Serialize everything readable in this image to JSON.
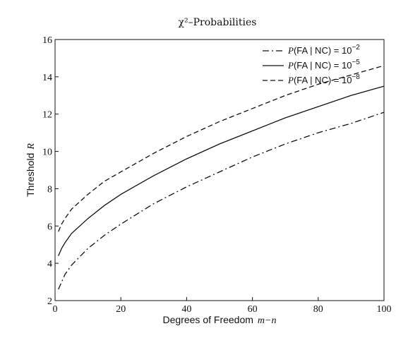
{
  "chart_data": {
    "type": "line",
    "title": "χ²–Probabilities",
    "xlabel": "Degrees of Freedom",
    "xlabel_math": "m−n",
    "ylabel": "Threshold",
    "ylabel_math": "R",
    "xlim": [
      0,
      100
    ],
    "ylim": [
      2,
      16
    ],
    "xticks": [
      0,
      20,
      40,
      60,
      80,
      100
    ],
    "yticks": [
      2,
      4,
      6,
      8,
      10,
      12,
      14,
      16
    ],
    "grid": false,
    "legend_position": "top-right",
    "series": [
      {
        "legend_prefix": "P",
        "legend_body": "(FA | NC) = 10",
        "legend_exp": "−2",
        "style": "dashdot",
        "x": [
          1,
          2,
          3,
          5,
          10,
          15,
          20,
          30,
          40,
          50,
          60,
          70,
          80,
          90,
          100
        ],
        "y": [
          2.6,
          3.0,
          3.4,
          3.9,
          4.8,
          5.5,
          6.1,
          7.2,
          8.1,
          8.9,
          9.7,
          10.4,
          11.0,
          11.5,
          12.1
        ]
      },
      {
        "legend_prefix": "P",
        "legend_body": "(FA | NC) = 10",
        "legend_exp": "−5",
        "style": "solid",
        "x": [
          1,
          2,
          3,
          5,
          10,
          15,
          20,
          30,
          40,
          50,
          60,
          70,
          80,
          90,
          100
        ],
        "y": [
          4.4,
          4.8,
          5.1,
          5.6,
          6.4,
          7.1,
          7.7,
          8.7,
          9.6,
          10.4,
          11.1,
          11.8,
          12.4,
          13.0,
          13.5
        ]
      },
      {
        "legend_prefix": "P",
        "legend_body": "(FA | NC) = 10",
        "legend_exp": "−8",
        "style": "dashed",
        "x": [
          1,
          2,
          3,
          5,
          10,
          15,
          20,
          30,
          40,
          50,
          60,
          70,
          80,
          90,
          100
        ],
        "y": [
          5.7,
          6.1,
          6.4,
          6.9,
          7.7,
          8.4,
          8.9,
          9.9,
          10.8,
          11.6,
          12.3,
          13.0,
          13.6,
          14.1,
          14.6
        ]
      }
    ]
  }
}
